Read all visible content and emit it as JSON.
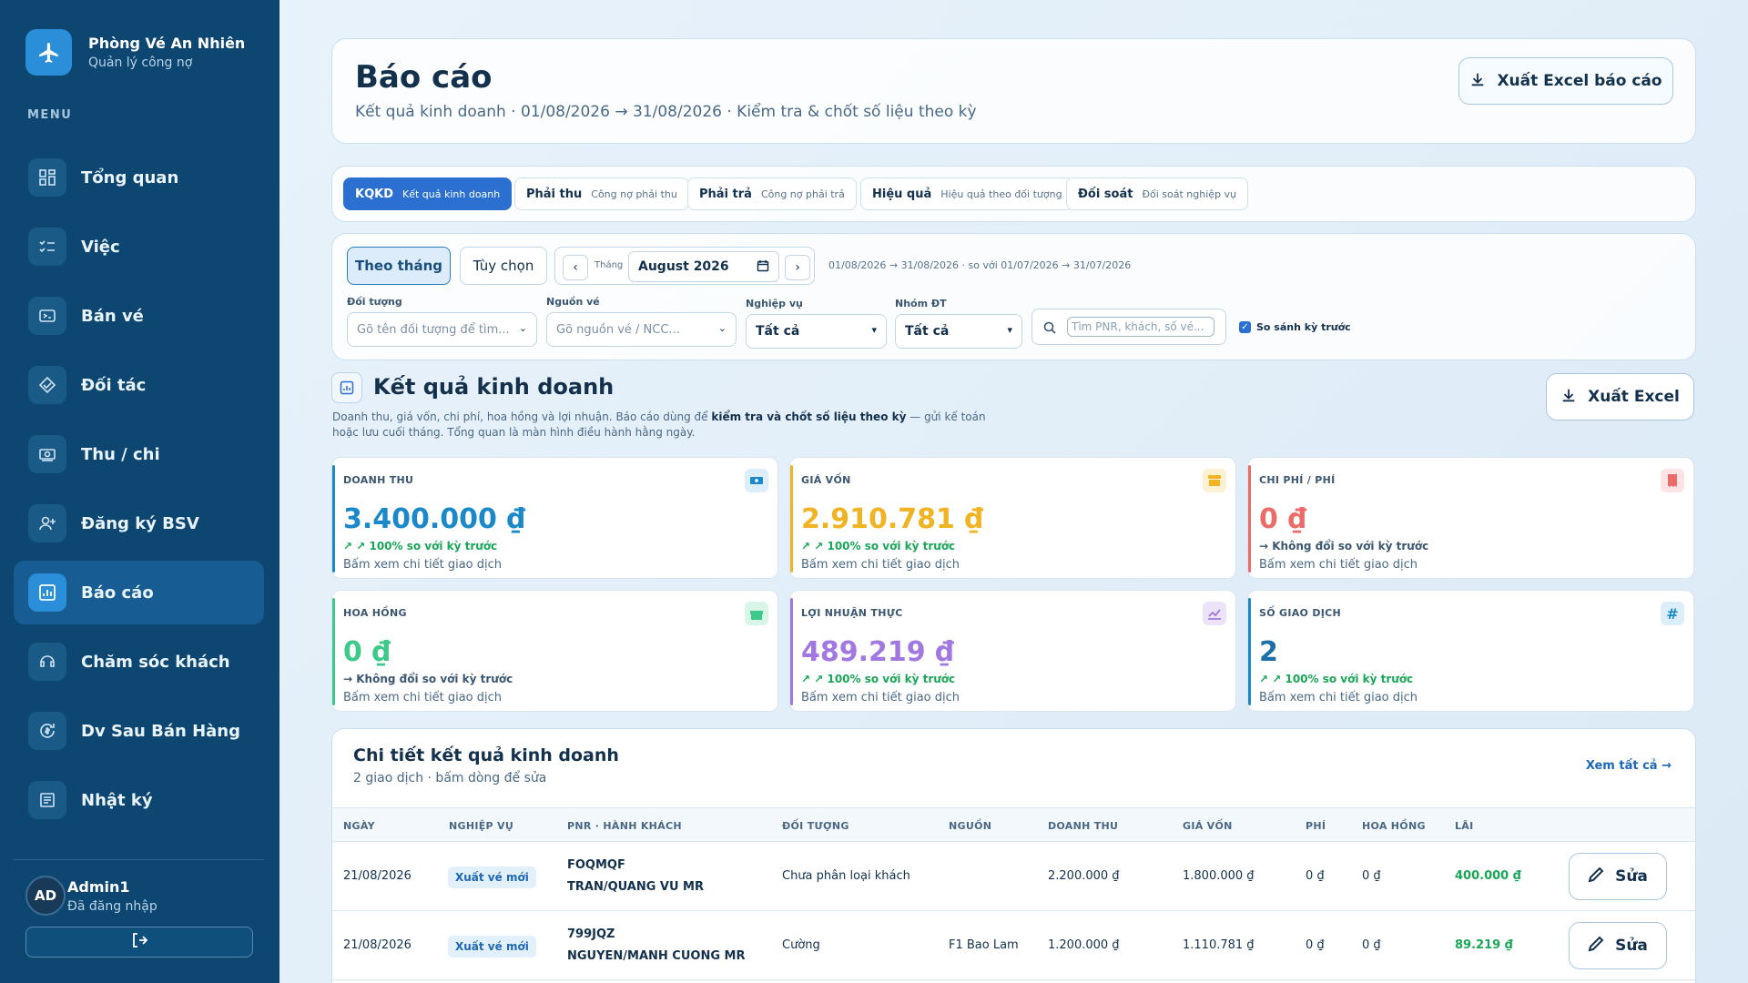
{
  "brand": {
    "title": "Phòng Vé An Nhiên",
    "subtitle": "Quản lý công nợ"
  },
  "menu_heading": "MENU",
  "nav": [
    {
      "label": "Tổng quan",
      "icon": "dashboard-icon"
    },
    {
      "label": "Việc",
      "icon": "checklist-icon"
    },
    {
      "label": "Bán vé",
      "icon": "ticket-icon"
    },
    {
      "label": "Đối tác",
      "icon": "handshake-icon"
    },
    {
      "label": "Thu / chi",
      "icon": "cash-icon"
    },
    {
      "label": "Đăng ký BSV",
      "icon": "user-add-icon"
    },
    {
      "label": "Báo cáo",
      "icon": "report-icon",
      "active": true
    },
    {
      "label": "Chăm sóc khách",
      "icon": "support-icon"
    },
    {
      "label": "Dv Sau Bán Hàng",
      "icon": "refresh-dollar-icon"
    },
    {
      "label": "Nhật ký",
      "icon": "log-icon"
    }
  ],
  "user": {
    "initials": "AD",
    "name": "Admin1",
    "status": "Đã đăng nhập"
  },
  "header": {
    "title": "Báo cáo",
    "subtitle": "Kết quả kinh doanh · 01/08/2026 → 31/08/2026 · Kiểm tra & chốt số liệu theo kỳ",
    "export_label": "Xuất Excel báo cáo"
  },
  "tabs": [
    {
      "label": "KQKD",
      "desc": "Kết quả kinh doanh",
      "active": true
    },
    {
      "label": "Phải thu",
      "desc": "Công nợ phải thu"
    },
    {
      "label": "Phải trả",
      "desc": "Công nợ phải trả"
    },
    {
      "label": "Hiệu quả",
      "desc": "Hiệu quả theo đối tượng"
    },
    {
      "label": "Đối soát",
      "desc": "Đối soát nghiệp vụ"
    }
  ],
  "filters": {
    "mode_month": "Theo tháng",
    "mode_custom": "Tùy chọn",
    "month_label": "Tháng",
    "month_value": "August 2026",
    "range_text": "01/08/2026 → 31/08/2026 · so với 01/07/2026 → 31/07/2026",
    "doi_tuong_label": "Đối tượng",
    "doi_tuong_placeholder": "Gõ tên đối tượng để tìm...",
    "nguon_ve_label": "Nguồn vé",
    "nguon_ve_placeholder": "Gõ nguồn vé / NCC...",
    "nghiep_vu_label": "Nghiệp vụ",
    "nghiep_vu_value": "Tất cả",
    "nhom_dt_label": "Nhóm ĐT",
    "nhom_dt_value": "Tất cả",
    "search_placeholder": "Tìm PNR, khách, số vé...",
    "compare_label": "So sánh kỳ trước"
  },
  "section": {
    "title": "Kết quả kinh doanh",
    "desc_before": "Doanh thu, giá vốn, chi phí, hoa hồng và lợi nhuận. Báo cáo dùng để ",
    "desc_bold": "kiểm tra và chốt số liệu theo kỳ",
    "desc_after": " — gửi kế toán hoặc lưu cuối tháng. Tổng quan là màn hình điều hành hằng ngày.",
    "export_label": "Xuất Excel"
  },
  "kpis": [
    {
      "title": "DOANH THU",
      "value": "3.400.000 ₫",
      "trend": "↗ ↗ 100% so với kỳ trước",
      "link": "Bấm xem chi tiết giao dịch",
      "color": "#1a88c9",
      "icon": "money-icon"
    },
    {
      "title": "GIÁ VỐN",
      "value": "2.910.781 ₫",
      "trend": "↗ ↗ 100% so với kỳ trước",
      "link": "Bấm xem chi tiết giao dịch",
      "color": "#f0b323",
      "icon": "archive-icon"
    },
    {
      "title": "CHI PHÍ / PHÍ",
      "value": "0 ₫",
      "trend": "→ Không đổi so với kỳ trước",
      "link": "Bấm xem chi tiết giao dịch",
      "color": "#ec6a6a",
      "icon": "receipt-icon"
    },
    {
      "title": "HOA HỒNG",
      "value": "0 ₫",
      "trend": "→ Không đổi so với kỳ trước",
      "link": "Bấm xem chi tiết giao dịch",
      "color": "#3cc98a",
      "icon": "gift-icon"
    },
    {
      "title": "LỢI NHUẬN THỰC",
      "value": "489.219 ₫",
      "trend": "↗ ↗ 100% so với kỳ trước",
      "link": "Bấm xem chi tiết giao dịch",
      "color": "#a178e0",
      "icon": "chart-icon"
    },
    {
      "title": "SỐ GIAO DỊCH",
      "value": "2",
      "trend": "↗ ↗ 100% so với kỳ trước",
      "link": "Bấm xem chi tiết giao dịch",
      "color": "#1a88c9",
      "icon": "hash-icon"
    }
  ],
  "table": {
    "title": "Chi tiết kết quả kinh doanh",
    "subtitle": "2 giao dịch · bấm dòng để sửa",
    "view_all": "Xem tất cả →",
    "headers": [
      "NGÀY",
      "NGHIỆP VỤ",
      "PNR · HÀNH KHÁCH",
      "ĐỐI TƯỢNG",
      "NGUỒN",
      "DOANH THU",
      "GIÁ VỐN",
      "PHÍ",
      "HOA HỒNG",
      "LÃI"
    ],
    "rows": [
      {
        "date": "21/08/2026",
        "type": "Xuất vé mới",
        "pnr": "FOQMQF",
        "pax": "TRAN/QUANG VU MR",
        "party": "Chưa phân loại khách",
        "source": "",
        "revenue": "2.200.000 ₫",
        "cost": "1.800.000 ₫",
        "fee": "0 ₫",
        "commission": "0 ₫",
        "profit": "400.000 ₫",
        "edit": "Sửa"
      },
      {
        "date": "21/08/2026",
        "type": "Xuất vé mới",
        "pnr": "799JQZ",
        "pax": "NGUYEN/MANH CUONG MR",
        "party": "Cường",
        "source": "F1 Bao Lam",
        "revenue": "1.200.000 ₫",
        "cost": "1.110.781 ₫",
        "fee": "0 ₫",
        "commission": "0 ₫",
        "profit": "89.219 ₫",
        "edit": "Sửa"
      }
    ]
  }
}
